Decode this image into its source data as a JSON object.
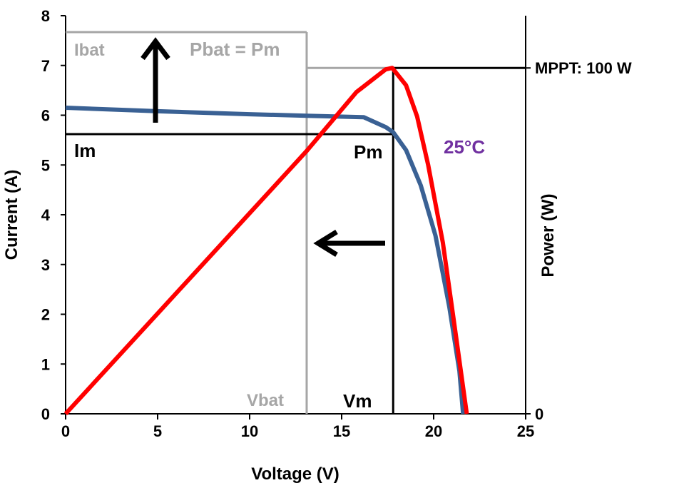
{
  "chart_data": {
    "type": "line",
    "xlabel": "Voltage (V)",
    "ylabel": "Current (A)",
    "y2label": "Power (W)",
    "xlim": [
      0,
      25
    ],
    "ylim": [
      0,
      8
    ],
    "xticks": [
      "0",
      "5",
      "10",
      "15",
      "20",
      "25"
    ],
    "yticks": [
      "0",
      "1",
      "2",
      "3",
      "4",
      "5",
      "6",
      "7",
      "8"
    ],
    "y2ticks": [
      {
        "label": "0",
        "value": 0
      },
      {
        "label": "MPPT: 100 W",
        "value": 100
      }
    ],
    "grid": false,
    "series": [
      {
        "axis": "current",
        "color": "#3a6194",
        "x": [
          0,
          5,
          10,
          13.1,
          16.2,
          17.4,
          17.8,
          18.5,
          19.3,
          20.1,
          20.85,
          21.4,
          21.6
        ],
        "y": [
          6.15,
          6.08,
          6.02,
          5.99,
          5.96,
          5.76,
          5.66,
          5.3,
          4.59,
          3.58,
          2.15,
          0.86,
          0
        ]
      },
      {
        "axis": "power",
        "color": "#ff0000",
        "x": [
          0,
          5,
          10,
          13.1,
          15.8,
          17.4,
          17.75,
          18.5,
          19.1,
          19.7,
          20.5,
          21.2,
          21.8
        ],
        "y": [
          0,
          29,
          58,
          76,
          93,
          99.6,
          100,
          95,
          86,
          72,
          49.5,
          23,
          0
        ]
      }
    ],
    "annotations": {
      "temperature": {
        "text": "25°C",
        "color": "#7030a0"
      },
      "im": {
        "text": "Im",
        "current": 5.62
      },
      "pm": {
        "text": "Pm"
      },
      "vm": {
        "text": "Vm",
        "voltage": 17.8
      },
      "vbat": {
        "text": "Vbat",
        "voltage": 13.1
      },
      "ibat": {
        "text": "Ibat",
        "current": 7.67
      },
      "pbat": {
        "text": "Pbat = Pm"
      }
    },
    "colors": {
      "grey": "#a6a6a6",
      "black": "#000000"
    }
  }
}
